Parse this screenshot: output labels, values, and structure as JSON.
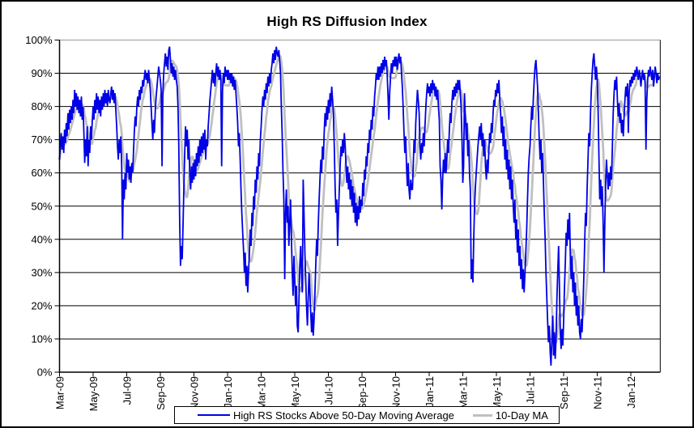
{
  "window": {
    "title": "High RS Diffusion Index"
  },
  "chart_data": {
    "type": "line",
    "title": "High RS Diffusion Index",
    "xlabel": "",
    "ylabel": "",
    "ylim": [
      0,
      100
    ],
    "grid": "horizontal",
    "legend_position": "bottom-center",
    "x_axis": {
      "unit": "months since Mar-2009 (daily data, Mar-2009 through Feb-2012)",
      "tick_positions_months": [
        0,
        2,
        4,
        6,
        8,
        10,
        12,
        14,
        16,
        18,
        20,
        22,
        24,
        26,
        28,
        30,
        32,
        34
      ],
      "tick_labels": [
        "Mar-09",
        "May-09",
        "Jul-09",
        "Sep-09",
        "Nov-09",
        "Jan-10",
        "Mar-10",
        "May-10",
        "Jul-10",
        "Sep-10",
        "Nov-10",
        "Jan-11",
        "Mar-11",
        "May-11",
        "Jul-11",
        "Sep-11",
        "Nov-11",
        "Jan-12"
      ]
    },
    "y_axis": {
      "tick_values": [
        0,
        10,
        20,
        30,
        40,
        50,
        60,
        70,
        80,
        90,
        100
      ],
      "tick_labels": [
        "0%",
        "10%",
        "20%",
        "30%",
        "40%",
        "50%",
        "60%",
        "70%",
        "80%",
        "90%",
        "100%"
      ]
    },
    "colors": {
      "primary_series": "#0000e6",
      "ma_series": "#c0c0c0",
      "gridline": "#000000",
      "top_gridline": "#999999",
      "axis": "#000000"
    },
    "series": [
      {
        "name": "High RS Stocks Above 50-Day Moving Average",
        "color": "#0000e6",
        "x_start_month": 0,
        "x_step_months": 0.05,
        "values": [
          64,
          68,
          72,
          67,
          71,
          66,
          73,
          69,
          75,
          71,
          78,
          73,
          79,
          75,
          80,
          76,
          82,
          78,
          85,
          80,
          84,
          79,
          83,
          78,
          82,
          77,
          83,
          76,
          80,
          72,
          63,
          70,
          65,
          74,
          62,
          70,
          66,
          74,
          70,
          76,
          80,
          76,
          82,
          78,
          84,
          79,
          83,
          78,
          82,
          77,
          83,
          79,
          84,
          80,
          85,
          81,
          84,
          80,
          85,
          82,
          81,
          84,
          86,
          82,
          85,
          81,
          84,
          79,
          74,
          68,
          64,
          70,
          66,
          71,
          62,
          40,
          58,
          52,
          60,
          55,
          66,
          60,
          64,
          58,
          62,
          57,
          63,
          60,
          66,
          72,
          77,
          74,
          80,
          83,
          80,
          85,
          82,
          86,
          84,
          88,
          86,
          89,
          91,
          88,
          90,
          87,
          91,
          88,
          85,
          80,
          75,
          70,
          76,
          72,
          79,
          83,
          86,
          89,
          92,
          90,
          88,
          85,
          62,
          84,
          90,
          93,
          96,
          92,
          95,
          91,
          97,
          98,
          94,
          90,
          93,
          89,
          92,
          88,
          91,
          88,
          86,
          80,
          68,
          45,
          32,
          38,
          34,
          44,
          56,
          66,
          74,
          68,
          73,
          64,
          70,
          60,
          55,
          62,
          57,
          63,
          58,
          64,
          59,
          66,
          62,
          68,
          63,
          70,
          65,
          71,
          66,
          72,
          67,
          73,
          64,
          70,
          68,
          74,
          78,
          82,
          85,
          88,
          91,
          87,
          90,
          86,
          90,
          93,
          89,
          92,
          88,
          91,
          88,
          62,
          85,
          90,
          87,
          92,
          89,
          91,
          88,
          91,
          88,
          90,
          87,
          90,
          86,
          89,
          85,
          88,
          84,
          80,
          75,
          68,
          72,
          64,
          55,
          48,
          42,
          37,
          30,
          36,
          26,
          32,
          24,
          30,
          36,
          43,
          38,
          48,
          44,
          53,
          49,
          58,
          54,
          62,
          58,
          66,
          62,
          70,
          74,
          79,
          83,
          80,
          85,
          82,
          87,
          84,
          89,
          86,
          90,
          87,
          91,
          93,
          96,
          93,
          97,
          94,
          98,
          96,
          95,
          97,
          94,
          90,
          80,
          72,
          60,
          52,
          28,
          48,
          55,
          45,
          50,
          38,
          45,
          52,
          40,
          30,
          23,
          35,
          28,
          20,
          26,
          14,
          12,
          22,
          32,
          38,
          30,
          24,
          58,
          48,
          36,
          28,
          20,
          14,
          22,
          30,
          24,
          18,
          12,
          18,
          11,
          16,
          24,
          32,
          40,
          35,
          45,
          52,
          58,
          64,
          60,
          68,
          64,
          72,
          78,
          74,
          80,
          76,
          82,
          78,
          84,
          80,
          86,
          82,
          78,
          68,
          56,
          48,
          52,
          38,
          48,
          55,
          62,
          68,
          65,
          70,
          66,
          72,
          68,
          62,
          57,
          62,
          55,
          60,
          52,
          58,
          50,
          56,
          48,
          54,
          45,
          51,
          44,
          50,
          46,
          53,
          48,
          52,
          50,
          57,
          53,
          61,
          58,
          65,
          62,
          69,
          66,
          73,
          70,
          76,
          73,
          80,
          77,
          83,
          86,
          90,
          88,
          92,
          88,
          92,
          89,
          93,
          90,
          94,
          91,
          95,
          92,
          94,
          90,
          83,
          76,
          84,
          89,
          93,
          90,
          94,
          92,
          95,
          92,
          95,
          91,
          94,
          96,
          93,
          95,
          90,
          86,
          80,
          72,
          66,
          71,
          62,
          56,
          63,
          55,
          52,
          58,
          55,
          55,
          62,
          70,
          66,
          75,
          80,
          85,
          82,
          78,
          68,
          64,
          69,
          66,
          72,
          68,
          74,
          80,
          84,
          87,
          84,
          86,
          83,
          87,
          84,
          88,
          85,
          87,
          83,
          86,
          82,
          85,
          80,
          76,
          62,
          58,
          49,
          58,
          64,
          60,
          66,
          60,
          64,
          70,
          66,
          73,
          78,
          75,
          81,
          85,
          82,
          86,
          83,
          87,
          84,
          88,
          85,
          88,
          84,
          80,
          70,
          57,
          62,
          84,
          77,
          70,
          75,
          65,
          70,
          60,
          55,
          28,
          34,
          27,
          40,
          50,
          56,
          60,
          64,
          68,
          71,
          74,
          70,
          75,
          68,
          72,
          65,
          70,
          62,
          58,
          64,
          60,
          67,
          72,
          69,
          75,
          72,
          78,
          82,
          80,
          85,
          83,
          87,
          84,
          88,
          82,
          78,
          72,
          77,
          68,
          74,
          64,
          70,
          61,
          67,
          58,
          64,
          55,
          62,
          52,
          58,
          50,
          45,
          52,
          40,
          46,
          36,
          43,
          32,
          38,
          28,
          34,
          25,
          31,
          24,
          30,
          36,
          43,
          52,
          60,
          65,
          68,
          74,
          80,
          76,
          83,
          88,
          92,
          94,
          90,
          86,
          78,
          70,
          64,
          70,
          60,
          66,
          57,
          48,
          40,
          30,
          22,
          15,
          9,
          14,
          6,
          2,
          10,
          17,
          5,
          12,
          4,
          10,
          22,
          30,
          38,
          26,
          12,
          7,
          13,
          8,
          15,
          25,
          33,
          42,
          38,
          46,
          40,
          48,
          35,
          28,
          35,
          24,
          30,
          20,
          27,
          17,
          23,
          14,
          20,
          12,
          10,
          16,
          12,
          20,
          28,
          38,
          48,
          44,
          56,
          64,
          72,
          68,
          78,
          85,
          90,
          94,
          96,
          92,
          88,
          92,
          88,
          80,
          65,
          52,
          58,
          50,
          56,
          45,
          30,
          44,
          57,
          64,
          59,
          55,
          60,
          56,
          62,
          58,
          68,
          78,
          84,
          88,
          85,
          89,
          82,
          77,
          81,
          75,
          78,
          72,
          76,
          71,
          77,
          82,
          86,
          83,
          87,
          72,
          84,
          88,
          86,
          89,
          87,
          90,
          88,
          91,
          89,
          92,
          90,
          88,
          91,
          89,
          86,
          89,
          91,
          88,
          90,
          87,
          67,
          82,
          88,
          91,
          89,
          92,
          90,
          88,
          91,
          86,
          89,
          92,
          90,
          87,
          90,
          88,
          89
        ]
      },
      {
        "name": "10-Day MA",
        "color": "#c0c0c0",
        "derivation": "trailing 10-day moving average of first series",
        "window_points": 10
      }
    ]
  }
}
